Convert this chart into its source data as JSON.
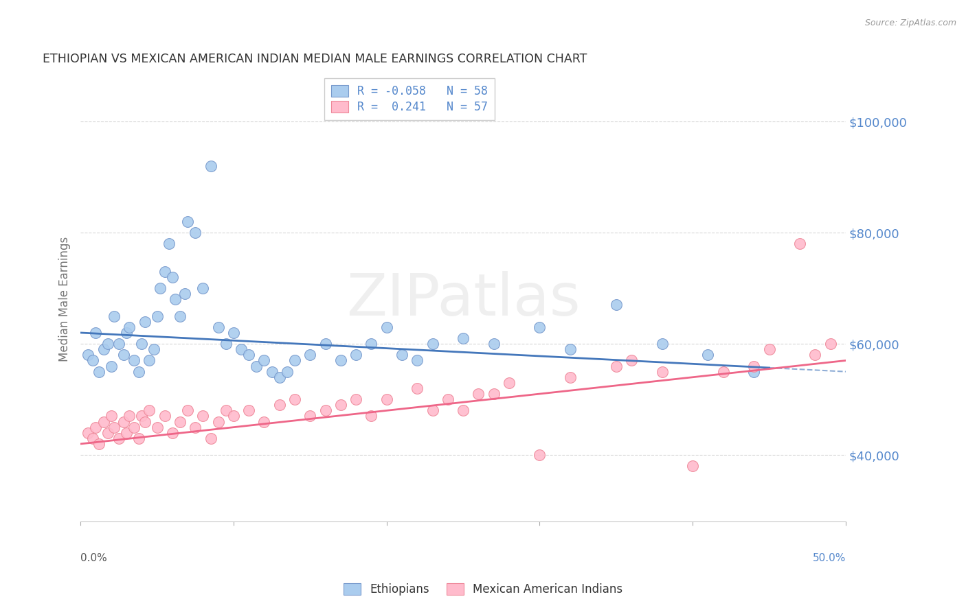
{
  "title": "ETHIOPIAN VS MEXICAN AMERICAN INDIAN MEDIAN MALE EARNINGS CORRELATION CHART",
  "source": "Source: ZipAtlas.com",
  "ylabel": "Median Male Earnings",
  "y_ticks": [
    40000,
    60000,
    80000,
    100000
  ],
  "y_tick_labels": [
    "$40,000",
    "$60,000",
    "$80,000",
    "$100,000"
  ],
  "xlim": [
    0.0,
    50.0
  ],
  "ylim": [
    28000,
    108000
  ],
  "legend_labels": [
    "Ethiopians",
    "Mexican American Indians"
  ],
  "legend_r": [
    -0.058,
    0.241
  ],
  "legend_n": [
    58,
    57
  ],
  "blue_scatter_color": "#AACCEE",
  "blue_edge_color": "#7799CC",
  "pink_scatter_color": "#FFBBCC",
  "pink_edge_color": "#EE8899",
  "blue_line_color": "#4477BB",
  "pink_line_color": "#EE6688",
  "grid_color": "#CCCCCC",
  "watermark": "ZIPatlas",
  "title_color": "#333333",
  "axis_label_color": "#777777",
  "tick_label_color": "#5588CC",
  "ethiopian_x": [
    0.5,
    0.8,
    1.0,
    1.2,
    1.5,
    1.8,
    2.0,
    2.2,
    2.5,
    2.8,
    3.0,
    3.2,
    3.5,
    3.8,
    4.0,
    4.2,
    4.5,
    4.8,
    5.0,
    5.2,
    5.5,
    5.8,
    6.0,
    6.2,
    6.5,
    6.8,
    7.0,
    7.5,
    8.0,
    8.5,
    9.0,
    9.5,
    10.0,
    10.5,
    11.0,
    11.5,
    12.0,
    12.5,
    13.0,
    13.5,
    14.0,
    15.0,
    16.0,
    17.0,
    18.0,
    19.0,
    20.0,
    21.0,
    22.0,
    23.0,
    25.0,
    27.0,
    30.0,
    32.0,
    35.0,
    38.0,
    41.0,
    44.0
  ],
  "ethiopian_y": [
    58000,
    57000,
    62000,
    55000,
    59000,
    60000,
    56000,
    65000,
    60000,
    58000,
    62000,
    63000,
    57000,
    55000,
    60000,
    64000,
    57000,
    59000,
    65000,
    70000,
    73000,
    78000,
    72000,
    68000,
    65000,
    69000,
    82000,
    80000,
    70000,
    92000,
    63000,
    60000,
    62000,
    59000,
    58000,
    56000,
    57000,
    55000,
    54000,
    55000,
    57000,
    58000,
    60000,
    57000,
    58000,
    60000,
    63000,
    58000,
    57000,
    60000,
    61000,
    60000,
    63000,
    59000,
    67000,
    60000,
    58000,
    55000
  ],
  "mexican_x": [
    0.5,
    0.8,
    1.0,
    1.2,
    1.5,
    1.8,
    2.0,
    2.2,
    2.5,
    2.8,
    3.0,
    3.2,
    3.5,
    3.8,
    4.0,
    4.2,
    4.5,
    5.0,
    5.5,
    6.0,
    6.5,
    7.0,
    7.5,
    8.0,
    8.5,
    9.0,
    9.5,
    10.0,
    11.0,
    12.0,
    13.0,
    14.0,
    15.0,
    16.0,
    17.0,
    18.0,
    19.0,
    20.0,
    22.0,
    24.0,
    25.0,
    27.0,
    28.0,
    30.0,
    32.0,
    35.0,
    38.0,
    40.0,
    42.0,
    44.0,
    45.0,
    47.0,
    48.0,
    49.0,
    36.0,
    26.0,
    23.0
  ],
  "mexican_y": [
    44000,
    43000,
    45000,
    42000,
    46000,
    44000,
    47000,
    45000,
    43000,
    46000,
    44000,
    47000,
    45000,
    43000,
    47000,
    46000,
    48000,
    45000,
    47000,
    44000,
    46000,
    48000,
    45000,
    47000,
    43000,
    46000,
    48000,
    47000,
    48000,
    46000,
    49000,
    50000,
    47000,
    48000,
    49000,
    50000,
    47000,
    50000,
    52000,
    50000,
    48000,
    51000,
    53000,
    40000,
    54000,
    56000,
    55000,
    38000,
    55000,
    56000,
    59000,
    78000,
    58000,
    60000,
    57000,
    51000,
    48000
  ],
  "eth_line_x0": 0.0,
  "eth_line_y0": 62000,
  "eth_line_x1": 50.0,
  "eth_line_y1": 55000,
  "mex_line_x0": 0.0,
  "mex_line_y0": 42000,
  "mex_line_x1": 50.0,
  "mex_line_y1": 57000
}
